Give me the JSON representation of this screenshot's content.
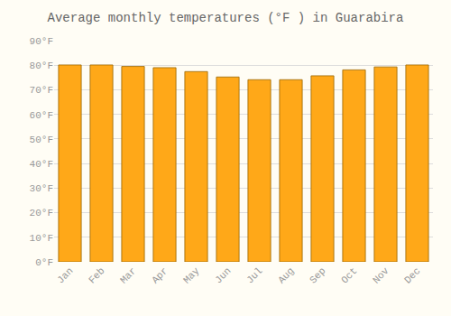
{
  "chart_data": {
    "type": "bar",
    "title": "Average monthly temperatures (°F ) in Guarabira",
    "categories": [
      "Jan",
      "Feb",
      "Mar",
      "Apr",
      "May",
      "Jun",
      "Jul",
      "Aug",
      "Sep",
      "Oct",
      "Nov",
      "Dec"
    ],
    "values": [
      80.1,
      80.1,
      79.5,
      79.0,
      77.4,
      75.2,
      74.1,
      74.1,
      75.7,
      78.1,
      79.3,
      80.1
    ],
    "color": "#FFA818",
    "ylim": [
      0,
      90
    ],
    "yticks": [
      {
        "value": 0,
        "label": "0°F"
      },
      {
        "value": 10,
        "label": "10°F"
      },
      {
        "value": 20,
        "label": "20°F"
      },
      {
        "value": 30,
        "label": "30°F"
      },
      {
        "value": 40,
        "label": "40°F"
      },
      {
        "value": 50,
        "label": "50°F"
      },
      {
        "value": 60,
        "label": "60°F"
      },
      {
        "value": 70,
        "label": "70°F"
      },
      {
        "value": 80,
        "label": "80°F"
      },
      {
        "value": 90,
        "label": "90°F"
      }
    ],
    "grid": true
  }
}
